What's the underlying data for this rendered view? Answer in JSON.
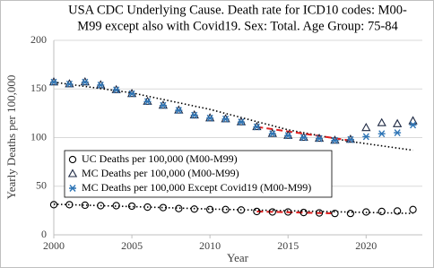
{
  "chart_data": {
    "type": "scatter",
    "title": [
      "USA CDC Underlying Cause. Death rate for ICD10 codes: M00-",
      "M99 except also with Covid19. Sex: Total. Age Group: 75-84"
    ],
    "x_label": "Year",
    "y_label": "Yearly Deaths per 100,000",
    "x": [
      2000,
      2001,
      2002,
      2003,
      2004,
      2005,
      2006,
      2007,
      2008,
      2009,
      2010,
      2011,
      2012,
      2013,
      2014,
      2015,
      2016,
      2017,
      2018,
      2019,
      2020,
      2021,
      2022,
      2023
    ],
    "series": [
      {
        "name": "UC Deaths per 100,000 (M00-M99)",
        "marker": "circle",
        "color": "#000000",
        "values": [
          31,
          31,
          30.5,
          30,
          30,
          29.5,
          28.5,
          28,
          27,
          26.5,
          26,
          26,
          25.5,
          24,
          23.5,
          23.5,
          23,
          22.5,
          22,
          22,
          23.5,
          24,
          24.5,
          26
        ]
      },
      {
        "name": "MC Deaths per 100,000 (M00-M99)",
        "marker": "triangle",
        "color": "#1f2a44",
        "values": [
          157,
          155,
          157,
          154,
          149,
          145,
          137,
          133,
          128,
          123,
          120,
          119,
          116,
          111,
          104,
          102,
          100,
          99,
          97,
          98,
          110,
          115,
          114,
          117
        ]
      },
      {
        "name": "MC Deaths per 100,000 Except Covid19 (M00-M99)",
        "marker": "star",
        "color": "#2e75b6",
        "values": [
          157,
          155,
          157,
          154,
          149,
          145,
          137,
          133,
          128,
          123,
          120,
          119,
          116,
          111,
          104,
          102,
          100,
          99,
          97,
          98,
          101,
          104,
          105,
          113
        ]
      }
    ],
    "trendlines": [
      {
        "style": "dotted",
        "color": "#000000",
        "x": [
          2000,
          2005,
          2010,
          2015,
          2019,
          2023
        ],
        "values": [
          157,
          146,
          129,
          108,
          96,
          87
        ]
      },
      {
        "style": "dotted",
        "color": "#000000",
        "x": [
          2000,
          2010,
          2023
        ],
        "values": [
          31.5,
          26.5,
          22
        ]
      },
      {
        "style": "dashed",
        "color": "#e02020",
        "x": [
          2013,
          2019
        ],
        "values": [
          111,
          97
        ]
      },
      {
        "style": "dashed",
        "color": "#e02020",
        "x": [
          2013,
          2018
        ],
        "values": [
          24,
          22
        ]
      }
    ],
    "xlim": [
      2000,
      2023.6
    ],
    "xticks": [
      2000,
      2005,
      2010,
      2015,
      2020
    ],
    "ylim": [
      0,
      200
    ],
    "yticks": [
      0,
      50,
      100,
      150,
      200
    ],
    "grid": true
  }
}
